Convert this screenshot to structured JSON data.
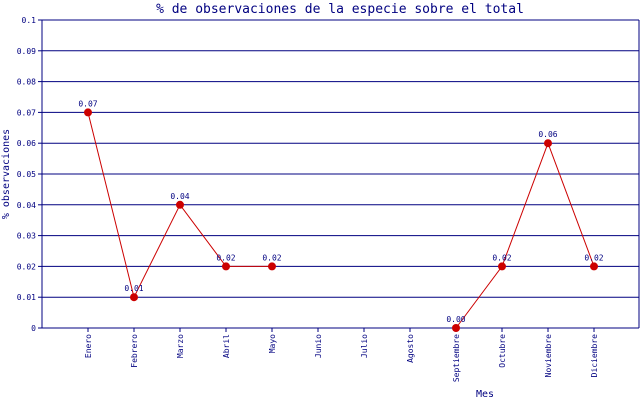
{
  "chart_data": {
    "type": "line",
    "title": "% de observaciones de la especie sobre el total",
    "xlabel": "Mes",
    "ylabel": "% observaciones",
    "categories": [
      "Enero",
      "Febrero",
      "Marzo",
      "Abril",
      "Mayo",
      "Junio",
      "Julio",
      "Agosto",
      "Septiembre",
      "Octubre",
      "Noviembre",
      "Diciembre"
    ],
    "segments": [
      [
        0,
        1,
        2,
        3,
        4
      ],
      [
        8,
        9,
        10,
        11
      ]
    ],
    "series": [
      {
        "values": [
          0.07,
          0.01,
          0.04,
          0.02,
          0.02,
          null,
          null,
          null,
          0.0,
          0.02,
          0.06,
          0.02
        ],
        "labels": [
          "0.07",
          "0.01",
          "0.04",
          "0.02",
          "0.02",
          "",
          "",
          "",
          "0.00",
          "0.02",
          "0.06",
          "0.02"
        ]
      }
    ],
    "ylim": [
      0,
      0.1
    ],
    "yticks": [
      "0",
      "0.01",
      "0.02",
      "0.03",
      "0.04",
      "0.05",
      "0.06",
      "0.07",
      "0.08",
      "0.09",
      "0.1"
    ],
    "grid": true,
    "colors": {
      "axis": "#000080",
      "grid": "#000080",
      "line": "#cc0000",
      "marker": "#cc0000",
      "text": "#000080"
    }
  }
}
